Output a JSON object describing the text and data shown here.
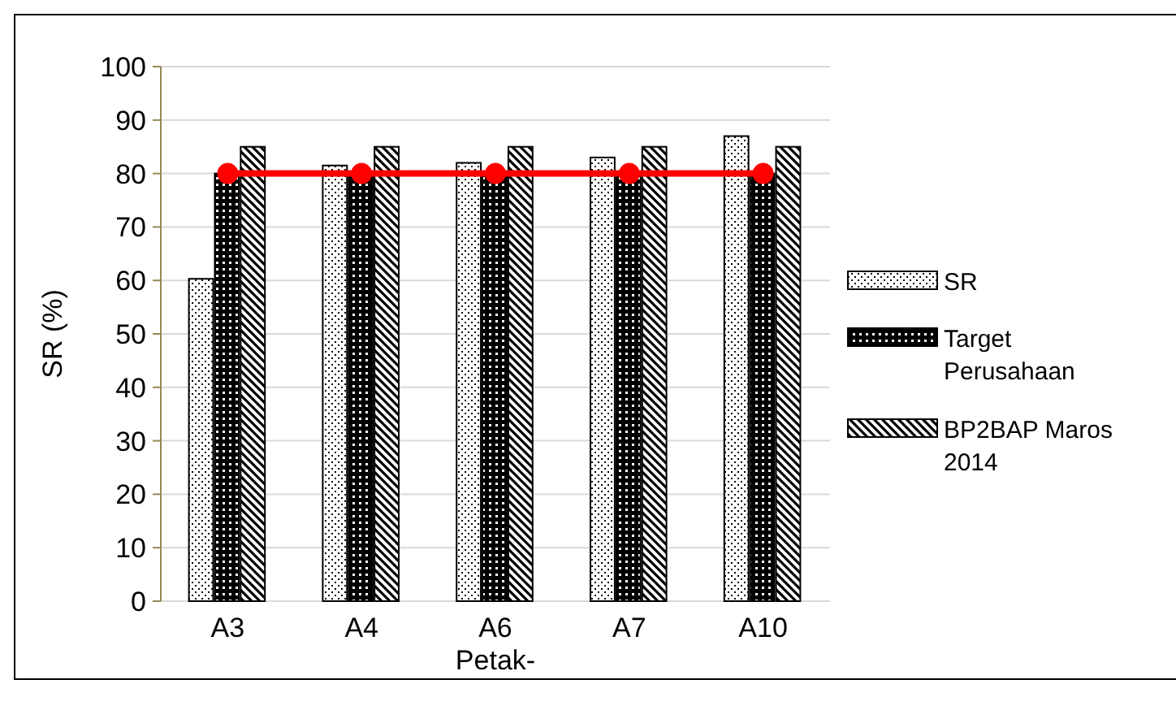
{
  "chart_data": {
    "type": "bar",
    "xlabel": "Petak-",
    "ylabel": "SR (%)",
    "categories": [
      "A3",
      "A4",
      "A6",
      "A7",
      "A10"
    ],
    "series": [
      {
        "name": "SR",
        "color": "#000000",
        "values": [
          60.3,
          81.5,
          82,
          83,
          87
        ]
      },
      {
        "name": "Target Perusahaan",
        "color": "#000000",
        "values": [
          80,
          80,
          80,
          80,
          80
        ]
      },
      {
        "name": "BP2BAP Maros 2014",
        "color": "#000000",
        "values": [
          85,
          85,
          85,
          85,
          85
        ]
      },
      {
        "type": "line",
        "color": "#ff0000",
        "values": [
          80,
          80,
          80,
          80,
          80
        ],
        "marker": "circle"
      }
    ],
    "ylim": [
      0,
      100
    ],
    "yticks": [
      0,
      10,
      20,
      30,
      40,
      50,
      60,
      70,
      80,
      90,
      100
    ],
    "grid": "y",
    "legend": "right"
  }
}
